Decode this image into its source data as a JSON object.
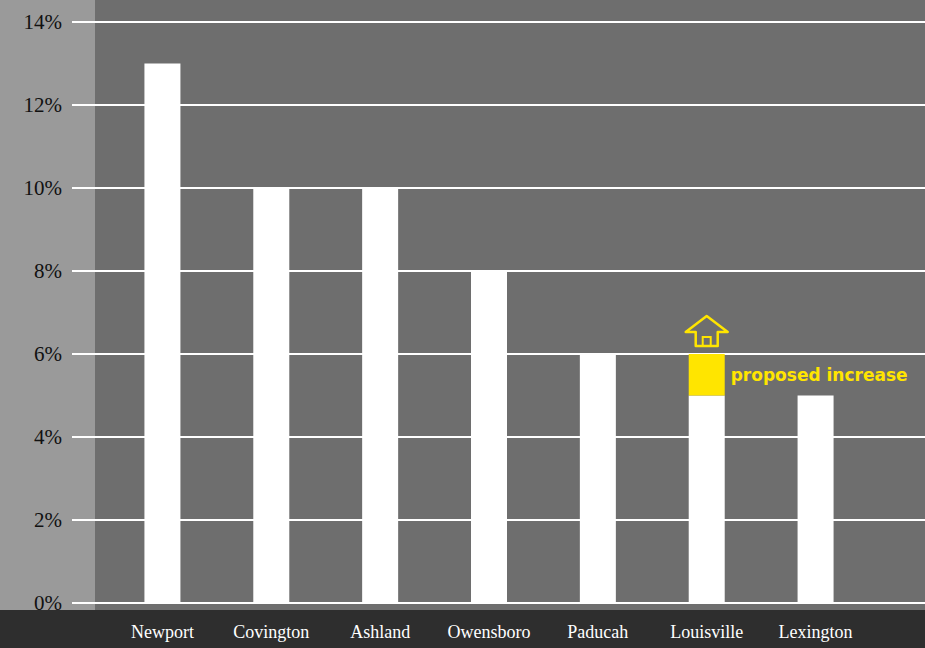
{
  "chart_data": {
    "type": "bar",
    "categories": [
      "Newport",
      "Covington",
      "Ashland",
      "Owensboro",
      "Paducah",
      "Louisville",
      "Lexington"
    ],
    "series": [
      {
        "color": "#ffffff",
        "values": [
          13,
          10,
          10,
          8,
          6,
          5,
          5
        ]
      },
      {
        "name": "proposed increase",
        "color": "#ffe500",
        "values": [
          null,
          null,
          null,
          null,
          null,
          1,
          null
        ]
      }
    ],
    "stacked": true,
    "ylim": [
      0,
      14
    ],
    "yticks": [
      {
        "value": 0,
        "label": "0%"
      },
      {
        "value": 2,
        "label": "2%"
      },
      {
        "value": 4,
        "label": "4%"
      },
      {
        "value": 6,
        "label": "6%"
      },
      {
        "value": 8,
        "label": "8%"
      },
      {
        "value": 10,
        "label": "10%"
      },
      {
        "value": 12,
        "label": "12%"
      },
      {
        "value": 14,
        "label": "14%"
      }
    ],
    "grid": true
  }
}
